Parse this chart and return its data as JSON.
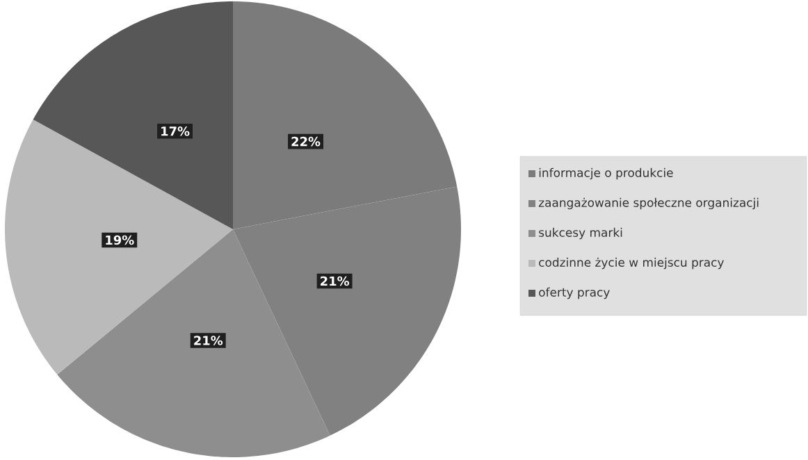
{
  "chart_data": {
    "type": "pie",
    "categories": [
      "informacje o produkcie",
      "zaangażowanie społeczne organizacji",
      "sukcesy marki",
      "codzinne życie w miejscu pracy",
      "oferty pracy"
    ],
    "values": [
      22,
      21,
      21,
      19,
      17
    ],
    "colors": [
      "#7b7b7b",
      "#818181",
      "#8e8e8e",
      "#bababa",
      "#575757"
    ],
    "value_labels": [
      "22%",
      "21%",
      "21%",
      "19%",
      "17%"
    ],
    "legend": "right"
  }
}
